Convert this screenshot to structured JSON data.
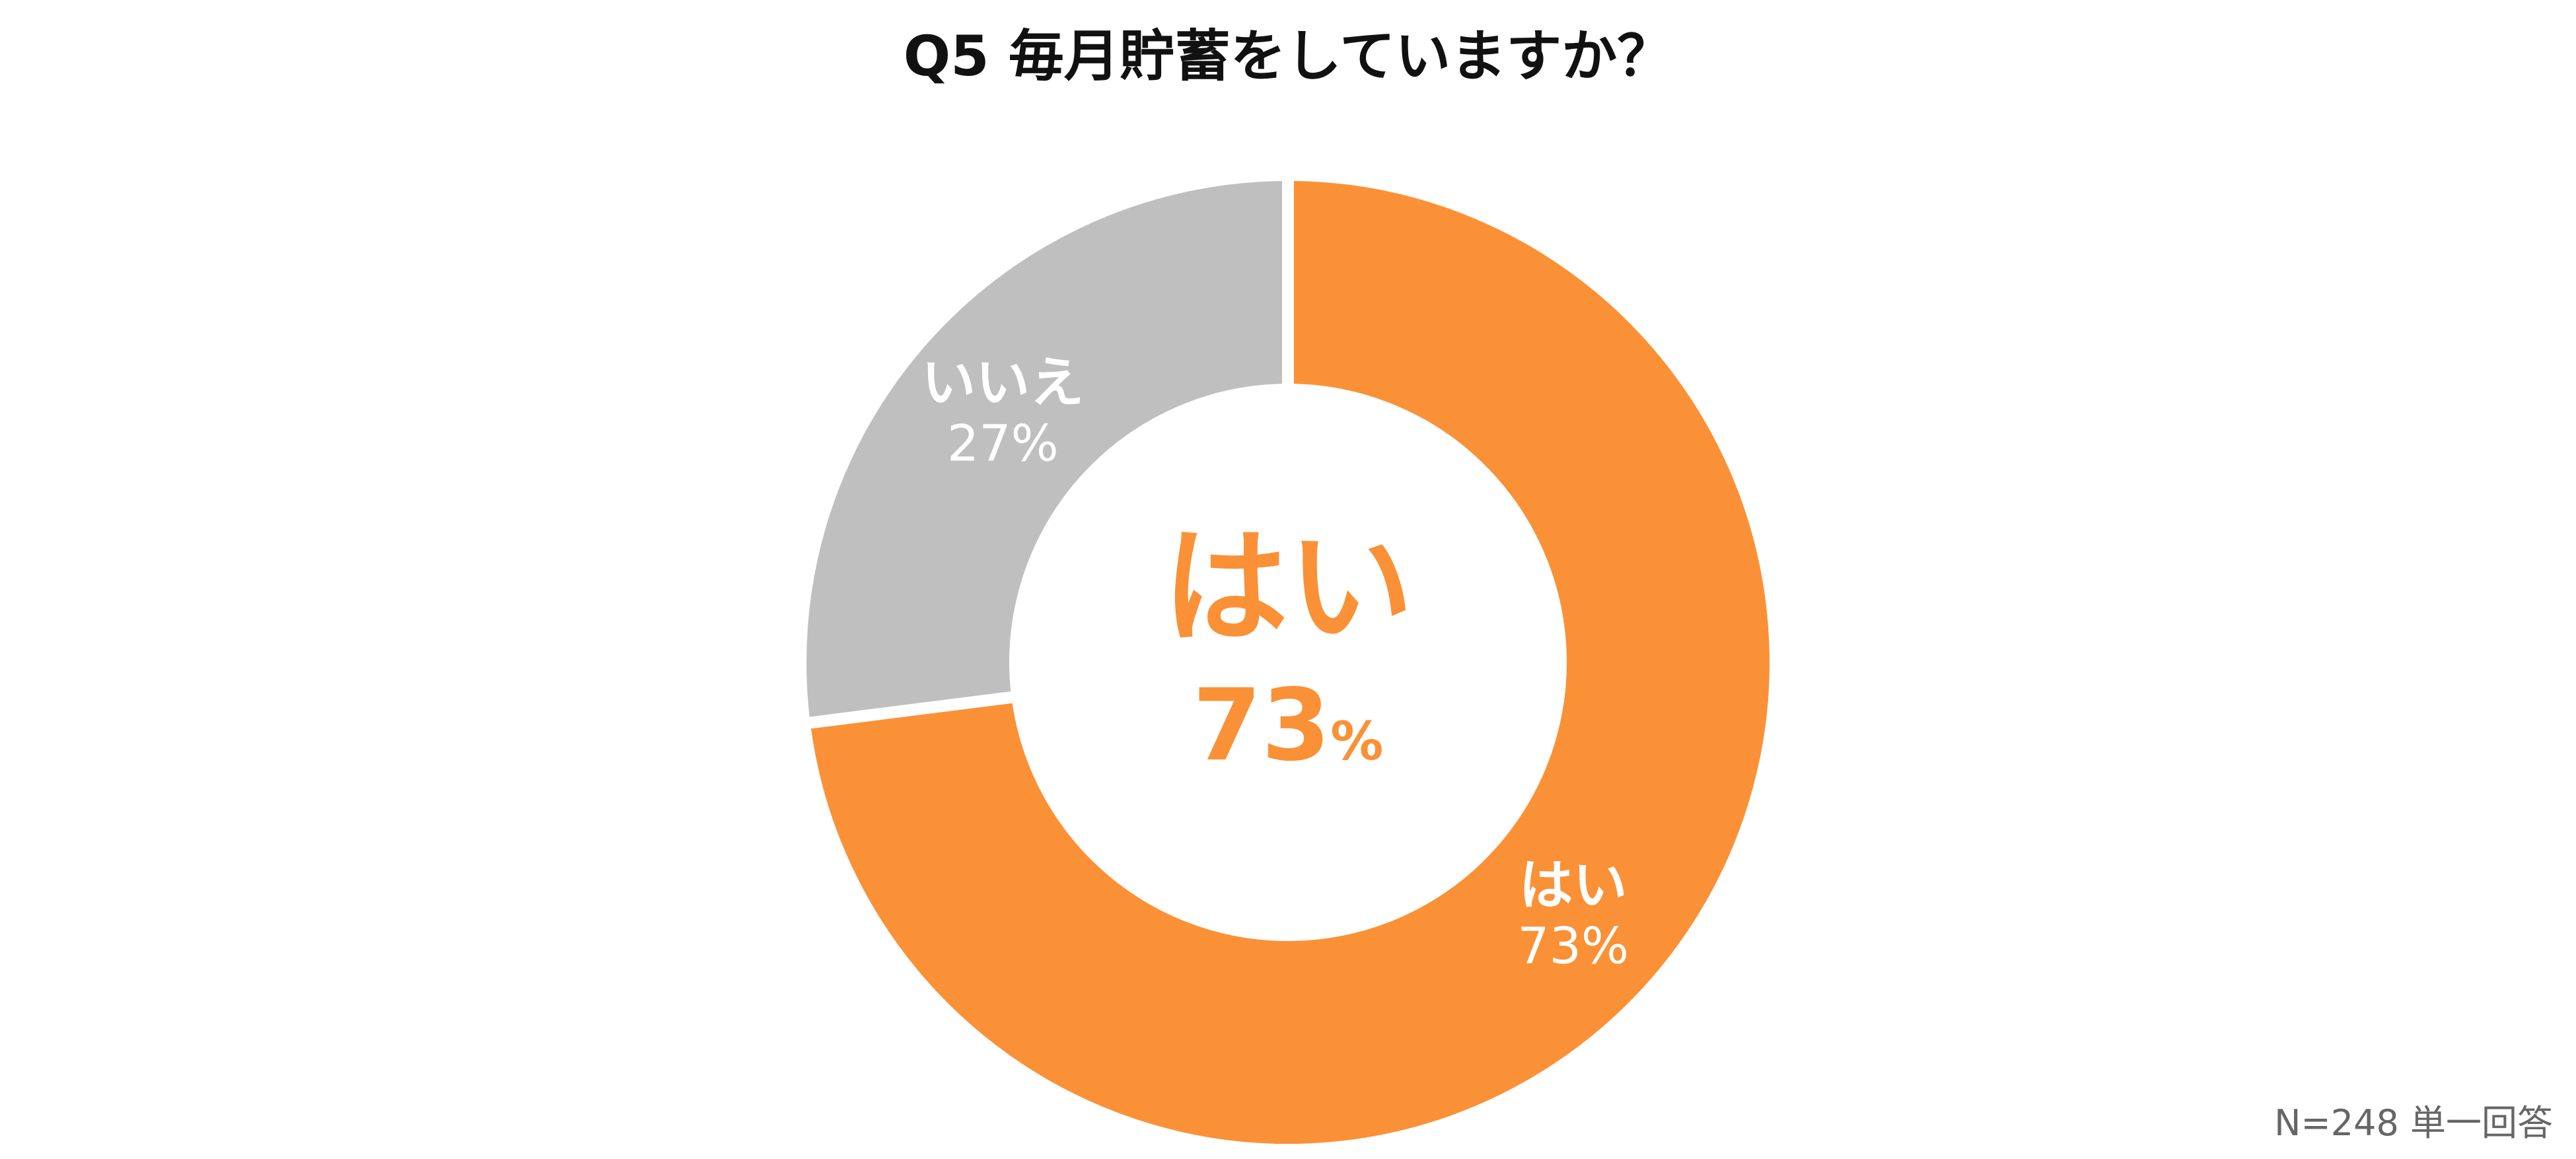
{
  "chart_data": {
    "type": "pie",
    "title": "Q5  毎月貯蓄をしていますか？",
    "slices": [
      {
        "label": "はい",
        "value": 73,
        "value_text": "73%",
        "color": "#FA9137"
      },
      {
        "label": "いいえ",
        "value": 27,
        "value_text": "27%",
        "color": "#BFBFBF"
      }
    ],
    "center_label": {
      "label": "はい",
      "value_text": "73",
      "unit": "%",
      "color": "#FA9137"
    },
    "footnote": "N=248  単一回答",
    "style": "donut"
  }
}
